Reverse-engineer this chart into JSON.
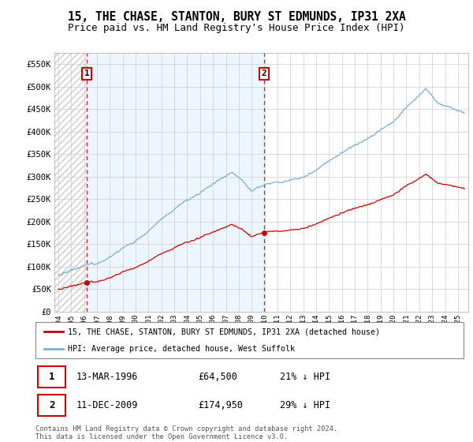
{
  "title": "15, THE CHASE, STANTON, BURY ST EDMUNDS, IP31 2XA",
  "subtitle": "Price paid vs. HM Land Registry's House Price Index (HPI)",
  "ylim": [
    0,
    575000
  ],
  "yticks": [
    0,
    50000,
    100000,
    150000,
    200000,
    250000,
    300000,
    350000,
    400000,
    450000,
    500000,
    550000
  ],
  "ytick_labels": [
    "£0",
    "£50K",
    "£100K",
    "£150K",
    "£200K",
    "£250K",
    "£300K",
    "£350K",
    "£400K",
    "£450K",
    "£500K",
    "£550K"
  ],
  "hpi_color": "#7aaed6",
  "price_color": "#cc0000",
  "marker_color": "#cc0000",
  "vline_color": "#cc0000",
  "sale1_date": 1996.21,
  "sale1_price": 64500,
  "sale2_date": 2009.96,
  "sale2_price": 174950,
  "legend_line1": "15, THE CHASE, STANTON, BURY ST EDMUNDS, IP31 2XA (detached house)",
  "legend_line2": "HPI: Average price, detached house, West Suffolk",
  "table_row1": [
    "1",
    "13-MAR-1996",
    "£64,500",
    "21% ↓ HPI"
  ],
  "table_row2": [
    "2",
    "11-DEC-2009",
    "£174,950",
    "29% ↓ HPI"
  ],
  "footnote": "Contains HM Land Registry data © Crown copyright and database right 2024.\nThis data is licensed under the Open Government Licence v3.0.",
  "title_fontsize": 10.5,
  "subtitle_fontsize": 9,
  "xmin": 1993.7,
  "xmax": 2025.8
}
